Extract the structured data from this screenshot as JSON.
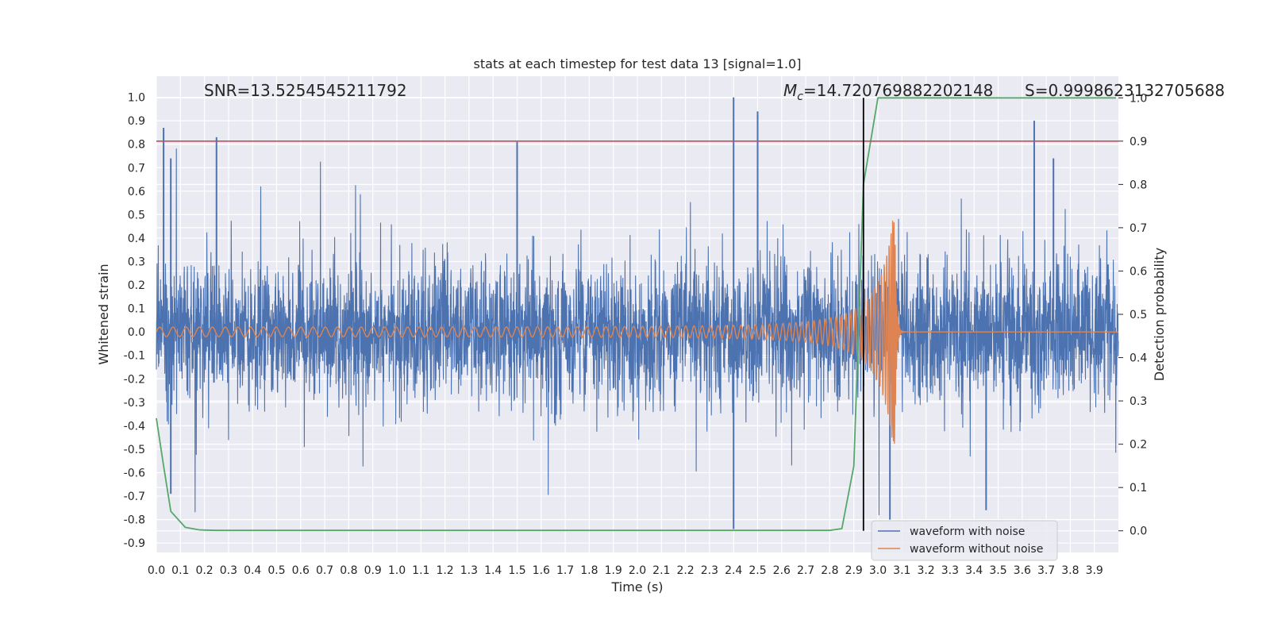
{
  "chart_data": {
    "type": "line",
    "title": "stats at each timestep for test data 13 [signal=1.0]",
    "xlabel": "Time (s)",
    "ylabel": "Whitened strain",
    "y2label": "Detection probability",
    "xlim": [
      0.0,
      4.0
    ],
    "ylim": [
      -0.94,
      1.09
    ],
    "y2lim": [
      -0.05,
      1.05
    ],
    "grid": true,
    "x_ticks": [
      "0.0",
      "0.1",
      "0.2",
      "0.3",
      "0.4",
      "0.5",
      "0.6",
      "0.7",
      "0.8",
      "0.9",
      "1.0",
      "1.1",
      "1.2",
      "1.3",
      "1.4",
      "1.5",
      "1.6",
      "1.7",
      "1.8",
      "1.9",
      "2.0",
      "2.1",
      "2.2",
      "2.3",
      "2.4",
      "2.5",
      "2.6",
      "2.7",
      "2.8",
      "2.9",
      "3.0",
      "3.1",
      "3.2",
      "3.3",
      "3.4",
      "3.5",
      "3.6",
      "3.7",
      "3.8",
      "3.9"
    ],
    "y_ticks": [
      "-0.9",
      "-0.8",
      "-0.7",
      "-0.6",
      "-0.5",
      "-0.4",
      "-0.3",
      "-0.2",
      "-0.1",
      "0.0",
      "0.1",
      "0.2",
      "0.3",
      "0.4",
      "0.5",
      "0.6",
      "0.7",
      "0.8",
      "0.9",
      "1.0"
    ],
    "y2_ticks": [
      "0.0",
      "0.1",
      "0.2",
      "0.3",
      "0.4",
      "0.5",
      "0.6",
      "0.7",
      "0.8",
      "0.9",
      "1.0"
    ],
    "annotations": {
      "snr": "SNR=13.5254545211792",
      "mc_symbol": "M",
      "mc_sub": "c",
      "mc_value": "=14.720769882202148",
      "s_label": "S=0.9998623132705688"
    },
    "threshold": {
      "value": 0.9,
      "axis": "y2",
      "color": "#c44e52"
    },
    "merger_marker": {
      "x": 2.94,
      "color": "#000000"
    },
    "legend": {
      "position": "lower-right",
      "entries": [
        {
          "label": "waveform with noise",
          "color": "#4c72b0"
        },
        {
          "label": "waveform without noise",
          "color": "#dd8452"
        }
      ]
    },
    "series": [
      {
        "name": "waveform with noise",
        "axis": "y",
        "color": "#4c72b0",
        "kind": "noise",
        "sigma": 0.15,
        "peaks": [
          {
            "x": 0.03,
            "y": 0.87
          },
          {
            "x": 0.06,
            "y": 0.74
          },
          {
            "x": 0.06,
            "y": -0.69
          },
          {
            "x": 0.25,
            "y": 0.83
          },
          {
            "x": 1.5,
            "y": 0.81
          },
          {
            "x": 2.4,
            "y": 1.0
          },
          {
            "x": 2.4,
            "y": -0.84
          },
          {
            "x": 2.5,
            "y": 0.94
          },
          {
            "x": 3.05,
            "y": -0.8
          },
          {
            "x": 3.65,
            "y": 0.9
          },
          {
            "x": 3.45,
            "y": -0.76
          },
          {
            "x": 3.73,
            "y": 0.74
          }
        ]
      },
      {
        "name": "waveform without noise",
        "axis": "y",
        "color": "#dd8452",
        "kind": "chirp",
        "start_amplitude": 0.02,
        "peak_amplitude": 0.55,
        "merger_time": 3.07,
        "start_frequency_hz": 18
      },
      {
        "name": "detection probability",
        "axis": "y2",
        "color": "#55a868",
        "x": [
          0.0,
          0.03,
          0.06,
          0.12,
          0.18,
          0.25,
          0.5,
          1.0,
          1.5,
          2.0,
          2.5,
          2.8,
          2.85,
          2.9,
          2.94,
          3.0,
          3.1,
          3.5,
          3.99
        ],
        "y": [
          0.26,
          0.15,
          0.045,
          0.008,
          0.002,
          0.001,
          0.001,
          0.001,
          0.001,
          0.001,
          0.001,
          0.001,
          0.005,
          0.15,
          0.8,
          1.0,
          1.0,
          1.0,
          1.0
        ]
      }
    ]
  }
}
